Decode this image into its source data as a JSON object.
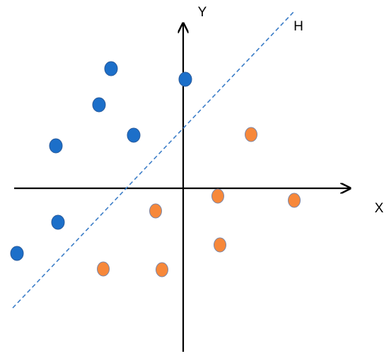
{
  "labels": {
    "y_axis": "Y",
    "x_axis": "X",
    "hyperplane": "H"
  }
}
